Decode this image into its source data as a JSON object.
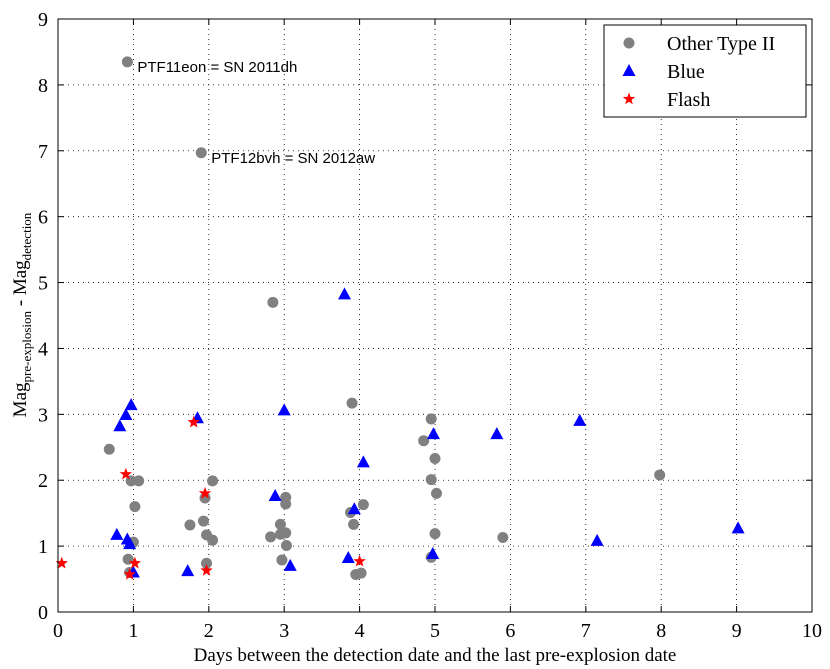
{
  "chart_data": {
    "type": "scatter",
    "title": "",
    "xlabel": "Days between the detection date and the last pre-explosion date",
    "ylabel": {
      "main1": "Mag",
      "sub1": "pre-explosion",
      "sep": " - Mag",
      "sub2": "detection"
    },
    "xlim": [
      0,
      10
    ],
    "ylim": [
      0,
      9
    ],
    "xticks": [
      "0",
      "1",
      "2",
      "3",
      "4",
      "5",
      "6",
      "7",
      "8",
      "9",
      "10"
    ],
    "yticks": [
      "0",
      "1",
      "2",
      "3",
      "4",
      "5",
      "6",
      "7",
      "8",
      "9"
    ],
    "grid": true,
    "legend_position": "top-right",
    "series": [
      {
        "name": "Other Type II",
        "marker": "circle",
        "color": "#808080",
        "points": [
          [
            0.92,
            8.35
          ],
          [
            1.9,
            6.97
          ],
          [
            2.85,
            4.7
          ],
          [
            3.9,
            3.17
          ],
          [
            4.95,
            2.93
          ],
          [
            4.85,
            2.6
          ],
          [
            5.0,
            2.33
          ],
          [
            4.95,
            2.01
          ],
          [
            5.02,
            1.8
          ],
          [
            4.05,
            1.63
          ],
          [
            3.88,
            1.51
          ],
          [
            3.92,
            1.33
          ],
          [
            5.0,
            1.19
          ],
          [
            5.9,
            1.13
          ],
          [
            7.98,
            2.08
          ],
          [
            4.95,
            0.83
          ],
          [
            3.95,
            0.57
          ],
          [
            4.02,
            0.59
          ],
          [
            0.68,
            2.47
          ],
          [
            0.97,
            1.99
          ],
          [
            1.07,
            1.99
          ],
          [
            2.05,
            1.99
          ],
          [
            1.02,
            1.6
          ],
          [
            1.95,
            1.73
          ],
          [
            3.02,
            1.74
          ],
          [
            3.02,
            1.64
          ],
          [
            1.75,
            1.32
          ],
          [
            1.93,
            1.38
          ],
          [
            1.97,
            1.17
          ],
          [
            2.05,
            1.09
          ],
          [
            2.82,
            1.14
          ],
          [
            2.95,
            1.33
          ],
          [
            2.95,
            1.18
          ],
          [
            3.02,
            1.2
          ],
          [
            3.03,
            1.01
          ],
          [
            2.97,
            0.79
          ],
          [
            1.0,
            1.06
          ],
          [
            0.93,
            0.8
          ],
          [
            1.97,
            0.74
          ],
          [
            0.95,
            0.6
          ]
        ]
      },
      {
        "name": "Blue",
        "marker": "triangle",
        "color": "#0000ff",
        "points": [
          [
            0.97,
            3.14
          ],
          [
            0.9,
            2.99
          ],
          [
            0.82,
            2.82
          ],
          [
            1.85,
            2.94
          ],
          [
            3.0,
            3.06
          ],
          [
            3.8,
            4.82
          ],
          [
            4.05,
            2.27
          ],
          [
            4.98,
            2.7
          ],
          [
            5.82,
            2.7
          ],
          [
            6.92,
            2.9
          ],
          [
            2.88,
            1.76
          ],
          [
            3.93,
            1.56
          ],
          [
            0.78,
            1.17
          ],
          [
            0.92,
            1.1
          ],
          [
            0.95,
            1.03
          ],
          [
            1.72,
            0.62
          ],
          [
            3.08,
            0.7
          ],
          [
            3.85,
            0.82
          ],
          [
            4.97,
            0.88
          ],
          [
            7.15,
            1.08
          ],
          [
            9.02,
            1.27
          ],
          [
            1.0,
            0.6
          ]
        ]
      },
      {
        "name": "Flash",
        "marker": "star",
        "color": "#ff0000",
        "points": [
          [
            0.05,
            0.74
          ],
          [
            0.9,
            2.09
          ],
          [
            1.8,
            2.88
          ],
          [
            1.95,
            1.8
          ],
          [
            1.97,
            0.63
          ],
          [
            1.02,
            0.74
          ],
          [
            0.95,
            0.57
          ],
          [
            4.0,
            0.77
          ]
        ]
      }
    ],
    "annotations": [
      {
        "text": "PTF11eon = SN 2011dh",
        "x": 0.92,
        "y": 8.35
      },
      {
        "text": "PTF12bvh = SN 2012aw",
        "x": 1.9,
        "y": 6.97
      }
    ]
  }
}
